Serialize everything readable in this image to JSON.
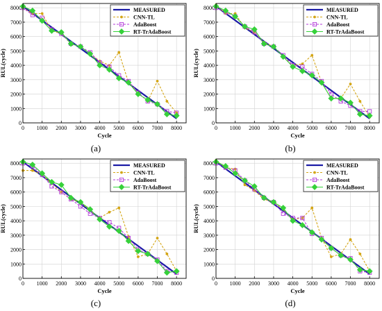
{
  "colors": {
    "measured": "#1a1aa6",
    "cnn": "#d4a514",
    "ada": "#b23ad9",
    "rt": "#36d13a"
  },
  "chart_data": [
    {
      "type": "line",
      "caption": "(a)",
      "xlabel": "Cycle",
      "ylabel": "RUL(cycle)",
      "xlim": [
        0,
        8500
      ],
      "ylim": [
        0,
        8300
      ],
      "xticks": [
        "0",
        "1000",
        "2000",
        "3000",
        "4000",
        "5000",
        "6000",
        "7000",
        "8000"
      ],
      "yticks": [
        "0",
        "1000",
        "2000",
        "3000",
        "4000",
        "5000",
        "6000",
        "7000",
        "8000"
      ],
      "grid": true,
      "legend_position": "top-right",
      "series": [
        {
          "name": "MEASURED",
          "style": "solid",
          "marker": "none",
          "x": [
            0,
            8000
          ],
          "y": [
            8100,
            300
          ]
        },
        {
          "name": "CNN-TL",
          "style": "dashed",
          "marker": "circle",
          "x": [
            0,
            500,
            1000,
            1500,
            2000,
            2500,
            3000,
            3500,
            4000,
            4500,
            5000,
            5500,
            6000,
            6500,
            7000,
            7500,
            8000
          ],
          "y": [
            8000,
            7600,
            7600,
            6400,
            6200,
            5500,
            5300,
            4800,
            4300,
            4000,
            4900,
            2800,
            2100,
            1500,
            2900,
            1500,
            700
          ]
        },
        {
          "name": "AdaBoost",
          "style": "dashed",
          "marker": "square",
          "x": [
            0,
            500,
            1000,
            1500,
            2000,
            2500,
            3000,
            3500,
            4000,
            4500,
            5000,
            5500,
            6000,
            6500,
            7000,
            7500,
            8000
          ],
          "y": [
            8000,
            7500,
            7300,
            6500,
            6200,
            5500,
            5300,
            4900,
            4200,
            3900,
            3300,
            2900,
            2100,
            1500,
            1300,
            800,
            700
          ]
        },
        {
          "name": "RT-TrAdaBoost",
          "style": "solid",
          "marker": "diamond",
          "x": [
            0,
            500,
            1000,
            1500,
            2000,
            2500,
            3000,
            3500,
            4000,
            4500,
            5000,
            5500,
            6000,
            6500,
            7000,
            7500,
            8000
          ],
          "y": [
            8100,
            7800,
            7100,
            6400,
            6300,
            5500,
            5300,
            4800,
            4000,
            3700,
            3100,
            2800,
            2000,
            1600,
            1300,
            600,
            500
          ]
        }
      ]
    },
    {
      "type": "line",
      "caption": "(b)",
      "xlabel": "Cycle",
      "ylabel": "RUL(cycle)",
      "xlim": [
        0,
        8500
      ],
      "ylim": [
        0,
        8300
      ],
      "xticks": [
        "0",
        "1000",
        "2000",
        "3000",
        "4000",
        "5000",
        "6000",
        "7000",
        "8000"
      ],
      "yticks": [
        "0",
        "1000",
        "2000",
        "3000",
        "4000",
        "5000",
        "6000",
        "7000",
        "8000"
      ],
      "grid": true,
      "legend_position": "top-right",
      "series": [
        {
          "name": "MEASURED",
          "style": "solid",
          "marker": "none",
          "x": [
            0,
            8000
          ],
          "y": [
            8100,
            300
          ]
        },
        {
          "name": "CNN-TL",
          "style": "dashed",
          "marker": "circle",
          "x": [
            0,
            500,
            1000,
            1500,
            2000,
            2500,
            3000,
            3500,
            4000,
            4500,
            5000,
            5500,
            6000,
            6500,
            7000,
            7500,
            8000
          ],
          "y": [
            8200,
            7600,
            7600,
            6600,
            6300,
            5600,
            5300,
            4600,
            4000,
            4100,
            4700,
            2800,
            1700,
            1700,
            2700,
            1500,
            400
          ]
        },
        {
          "name": "AdaBoost",
          "style": "dashed",
          "marker": "square",
          "x": [
            0,
            500,
            1000,
            1500,
            2000,
            2500,
            3000,
            3500,
            4000,
            4500,
            5000,
            5500,
            6000,
            6500,
            7000,
            7500,
            8000
          ],
          "y": [
            8000,
            7700,
            7400,
            6700,
            6300,
            5500,
            5300,
            4700,
            4000,
            3900,
            3400,
            2900,
            2000,
            1500,
            1200,
            800,
            800
          ]
        },
        {
          "name": "RT-TrAdaBoost",
          "style": "solid",
          "marker": "diamond",
          "x": [
            0,
            500,
            1000,
            1500,
            2000,
            2500,
            3000,
            3500,
            4000,
            4500,
            5000,
            5500,
            6000,
            6500,
            7000,
            7500,
            8000
          ],
          "y": [
            8100,
            7800,
            7400,
            6700,
            6500,
            5500,
            5300,
            4600,
            3900,
            3600,
            3300,
            2800,
            1700,
            1700,
            1400,
            600,
            500
          ]
        }
      ]
    },
    {
      "type": "line",
      "caption": "(c)",
      "xlabel": "Cycle",
      "ylabel": "RUL(cycle)",
      "xlim": [
        0,
        8500
      ],
      "ylim": [
        0,
        8300
      ],
      "xticks": [
        "0",
        "1000",
        "2000",
        "3000",
        "4000",
        "5000",
        "6000",
        "7000",
        "8000"
      ],
      "yticks": [
        "0",
        "1000",
        "2000",
        "3000",
        "4000",
        "5000",
        "6000",
        "7000",
        "8000"
      ],
      "grid": true,
      "legend_position": "top-right",
      "series": [
        {
          "name": "MEASURED",
          "style": "solid",
          "marker": "none",
          "x": [
            0,
            8000
          ],
          "y": [
            8100,
            300
          ]
        },
        {
          "name": "CNN-TL",
          "style": "dashed",
          "marker": "circle",
          "x": [
            0,
            500,
            1000,
            1500,
            2000,
            2500,
            3000,
            3500,
            4000,
            4500,
            5000,
            5500,
            6000,
            6500,
            7000,
            7500,
            8000
          ],
          "y": [
            7500,
            7500,
            7200,
            6600,
            6000,
            5500,
            5300,
            4700,
            4200,
            4600,
            4900,
            2900,
            1500,
            1700,
            2800,
            1700,
            500
          ]
        },
        {
          "name": "AdaBoost",
          "style": "dashed",
          "marker": "square",
          "x": [
            0,
            500,
            1000,
            1500,
            2000,
            2500,
            3000,
            3500,
            4000,
            4500,
            5000,
            5500,
            6000,
            6500,
            7000,
            7500,
            8000
          ],
          "y": [
            8000,
            7800,
            7200,
            6400,
            6000,
            5500,
            5000,
            4500,
            4200,
            3900,
            3500,
            2800,
            2000,
            1700,
            1300,
            500,
            400
          ]
        },
        {
          "name": "RT-TrAdaBoost",
          "style": "solid",
          "marker": "diamond",
          "x": [
            0,
            500,
            1000,
            1500,
            2000,
            2500,
            3000,
            3500,
            4000,
            4500,
            5000,
            5500,
            6000,
            6500,
            7000,
            7500,
            8000
          ],
          "y": [
            8100,
            7900,
            7300,
            6700,
            6500,
            5600,
            5300,
            4800,
            4100,
            3600,
            3300,
            2600,
            1900,
            1700,
            1200,
            400,
            500
          ]
        }
      ]
    },
    {
      "type": "line",
      "caption": "(d)",
      "xlabel": "Cycle",
      "ylabel": "RUL(cycle)",
      "xlim": [
        0,
        8500
      ],
      "ylim": [
        0,
        8300
      ],
      "xticks": [
        "0",
        "1000",
        "2000",
        "3000",
        "4000",
        "5000",
        "6000",
        "7000",
        "8000"
      ],
      "yticks": [
        "0",
        "1000",
        "2000",
        "3000",
        "4000",
        "5000",
        "6000",
        "7000",
        "8000"
      ],
      "grid": true,
      "legend_position": "top-right",
      "series": [
        {
          "name": "MEASURED",
          "style": "solid",
          "marker": "none",
          "x": [
            0,
            8000
          ],
          "y": [
            8100,
            300
          ]
        },
        {
          "name": "CNN-TL",
          "style": "dashed",
          "marker": "circle",
          "x": [
            0,
            500,
            1000,
            1500,
            2000,
            2500,
            3000,
            3500,
            4000,
            4500,
            5000,
            5500,
            6000,
            6500,
            7000,
            7500,
            8000
          ],
          "y": [
            8200,
            7700,
            7600,
            6500,
            6100,
            5500,
            5300,
            4800,
            4100,
            4200,
            4900,
            2800,
            1500,
            1700,
            2700,
            1700,
            500
          ]
        },
        {
          "name": "AdaBoost",
          "style": "dashed",
          "marker": "square",
          "x": [
            0,
            500,
            1000,
            1500,
            2000,
            2500,
            3000,
            3500,
            4000,
            4500,
            5000,
            5500,
            6000,
            6500,
            7000,
            7500,
            8000
          ],
          "y": [
            8000,
            7700,
            7500,
            6800,
            6200,
            5600,
            5300,
            4500,
            4200,
            4200,
            3100,
            2800,
            2100,
            1600,
            1400,
            500,
            400
          ]
        },
        {
          "name": "RT-TrAdaBoost",
          "style": "solid",
          "marker": "diamond",
          "x": [
            0,
            500,
            1000,
            1500,
            2000,
            2500,
            3000,
            3500,
            4000,
            4500,
            5000,
            5500,
            6000,
            6500,
            7000,
            7500,
            8000
          ],
          "y": [
            8100,
            7800,
            7300,
            6800,
            6400,
            5600,
            5300,
            4900,
            4000,
            3700,
            3200,
            2700,
            2100,
            1600,
            1300,
            600,
            500
          ]
        }
      ]
    }
  ]
}
